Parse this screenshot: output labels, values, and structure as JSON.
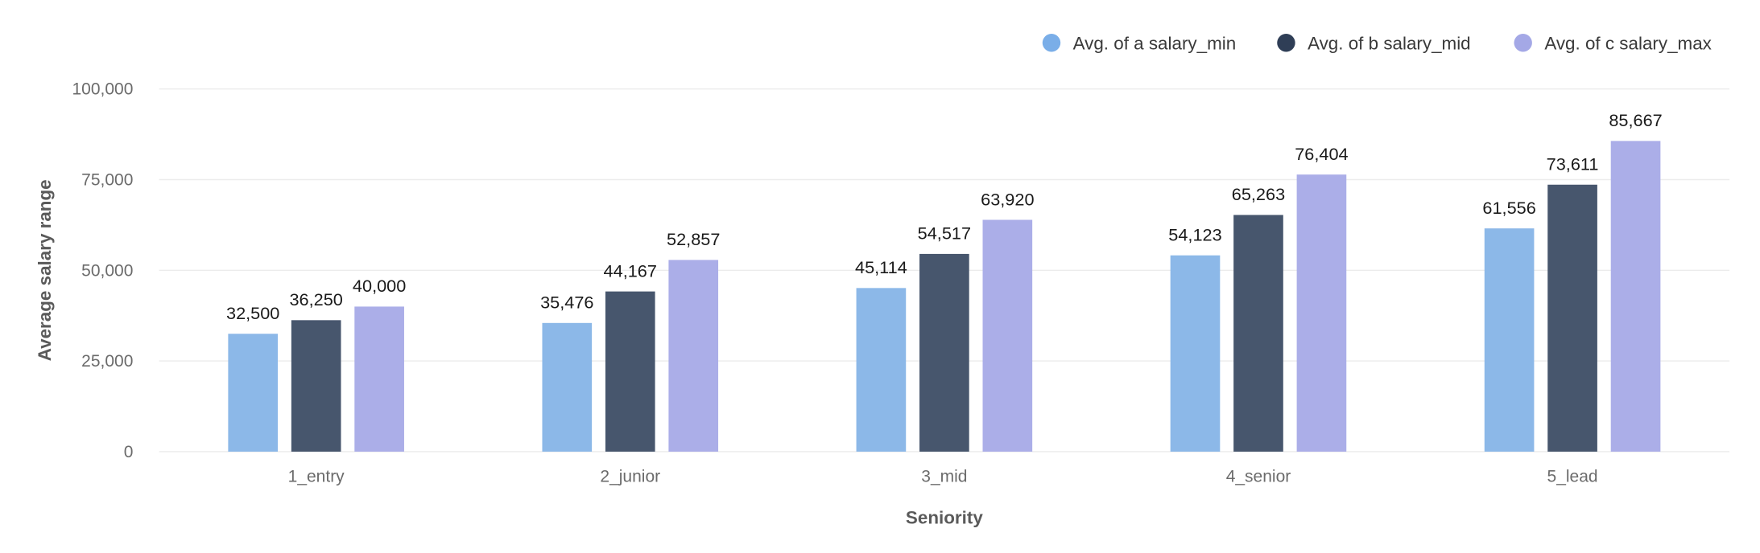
{
  "chart_data": {
    "type": "bar",
    "categories": [
      "1_entry",
      "2_junior",
      "3_mid",
      "4_senior",
      "5_lead"
    ],
    "series": [
      {
        "name": "Avg. of a salary_min",
        "color": "#8cb8e8",
        "legend_color": "#7aaee8",
        "values": [
          32500,
          35476,
          45114,
          54123,
          61556
        ],
        "labels": [
          "32,500",
          "35,476",
          "45,114",
          "54,123",
          "61,556"
        ]
      },
      {
        "name": "Avg. of b salary_mid",
        "color": "#47566d",
        "legend_color": "#2f3e56",
        "values": [
          36250,
          44167,
          54517,
          65263,
          73611
        ],
        "labels": [
          "36,250",
          "44,167",
          "54,517",
          "65,263",
          "73,611"
        ]
      },
      {
        "name": "Avg. of c salary_max",
        "color": "#abaee8",
        "legend_color": "#a4a8e6",
        "values": [
          40000,
          52857,
          63920,
          76404,
          85667
        ],
        "labels": [
          "40,000",
          "52,857",
          "63,920",
          "76,404",
          "85,667"
        ]
      }
    ],
    "xlabel": "Seniority",
    "ylabel": "Average salary range",
    "ylim": [
      0,
      100000
    ],
    "yticks": [
      0,
      25000,
      50000,
      75000,
      100000
    ],
    "ytick_labels": [
      "0",
      "25,000",
      "50,000",
      "75,000",
      "100,000"
    ],
    "grid": true,
    "legend_position": "top-right"
  }
}
